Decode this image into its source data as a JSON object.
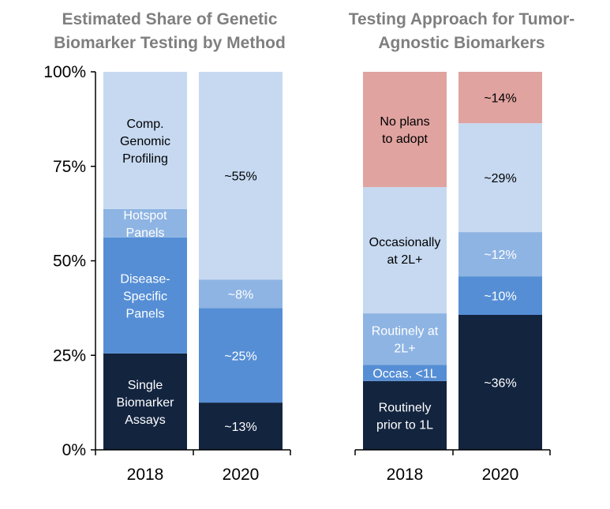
{
  "chart_data": [
    {
      "type": "bar",
      "stacked": true,
      "title": "Estimated Share of Genetic Biomarker Testing by Method",
      "title_lines": [
        "Estimated Share of Genetic",
        "Biomarker Testing by Method"
      ],
      "categories": [
        "2018",
        "2020"
      ],
      "ylim": [
        0,
        100
      ],
      "y_ticks": [
        "0%",
        "25%",
        "50%",
        "75%",
        "100%"
      ],
      "grid": false,
      "series": [
        {
          "name": "Single Biomarker Assays",
          "color": "#13243f",
          "text_color": "#ffffff",
          "values": [
            25.5,
            12.5
          ],
          "labels": [
            [
              "Single",
              "Biomarker",
              "Assays"
            ],
            [
              "~13%"
            ]
          ]
        },
        {
          "name": "Disease-Specific Panels",
          "color": "#558ed5",
          "text_color": "#ffffff",
          "values": [
            30.7,
            25
          ],
          "labels": [
            [
              "Disease-",
              "Specific",
              "Panels"
            ],
            [
              "~25%"
            ]
          ]
        },
        {
          "name": "Hotspot Panels",
          "color": "#8eb4e3",
          "text_color": "#ffffff",
          "values": [
            7.5,
            7.5
          ],
          "labels": [
            [
              "Hotspot",
              "Panels"
            ],
            [
              "~8%"
            ]
          ]
        },
        {
          "name": "Comp. Genomic Profiling",
          "color": "#c6d9f1",
          "text_color": "#000000",
          "values": [
            36.3,
            55
          ],
          "labels": [
            [
              "Comp.",
              "Genomic",
              "Profiling"
            ],
            [
              "~55%"
            ]
          ]
        }
      ]
    },
    {
      "type": "bar",
      "stacked": true,
      "title": "Testing Approach for Tumor-Agnostic Biomarkers",
      "title_lines": [
        "Testing Approach for Tumor-",
        "Agnostic Biomarkers"
      ],
      "categories": [
        "2018",
        "2020"
      ],
      "ylim": [
        0,
        100
      ],
      "grid": false,
      "series": [
        {
          "name": "Routinely prior to 1L",
          "color": "#13243f",
          "text_color": "#ffffff",
          "values": [
            18.2,
            35.7
          ],
          "labels": [
            [
              "Routinely",
              "prior to 1L"
            ],
            [
              "~36%"
            ]
          ]
        },
        {
          "name": "Occas. <1L",
          "color": "#558ed5",
          "text_color": "#ffffff",
          "values": [
            4.3,
            10.2
          ],
          "labels": [
            [
              "Occas. <1L"
            ],
            [
              "~10%"
            ]
          ]
        },
        {
          "name": "Routinely at 2L+",
          "color": "#8eb4e3",
          "text_color": "#ffffff",
          "values": [
            13.6,
            11.7
          ],
          "labels": [
            [
              "Routinely at",
              "2L+"
            ],
            [
              "~12%"
            ]
          ]
        },
        {
          "name": "Occasionally at 2L+",
          "color": "#c6d9f1",
          "text_color": "#000000",
          "values": [
            33.4,
            28.8
          ],
          "labels": [
            [
              "Occasionally",
              "at 2L+"
            ],
            [
              "~29%"
            ]
          ]
        },
        {
          "name": "No plans to adopt",
          "color": "#e0a3a0",
          "text_color": "#000000",
          "values": [
            30.5,
            13.6
          ],
          "labels": [
            [
              "No plans",
              "to adopt"
            ],
            [
              "~14%"
            ]
          ]
        }
      ]
    }
  ]
}
